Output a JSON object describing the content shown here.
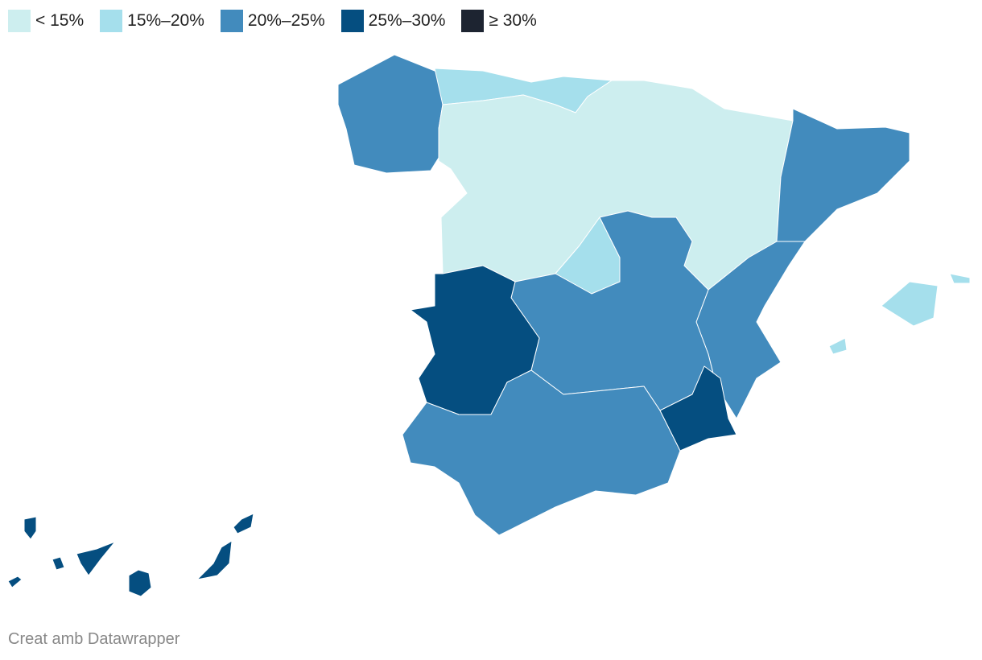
{
  "legend": [
    {
      "label": "< 15%",
      "color": "#cdeeef"
    },
    {
      "label": "15%–20%",
      "color": "#a5dfec"
    },
    {
      "label": "20%–25%",
      "color": "#428bbd"
    },
    {
      "label": "25%–30%",
      "color": "#054e80"
    },
    {
      "label": "≥ 30%",
      "color": "#1d2431"
    }
  ],
  "footer": "Creat amb Datawrapper"
}
